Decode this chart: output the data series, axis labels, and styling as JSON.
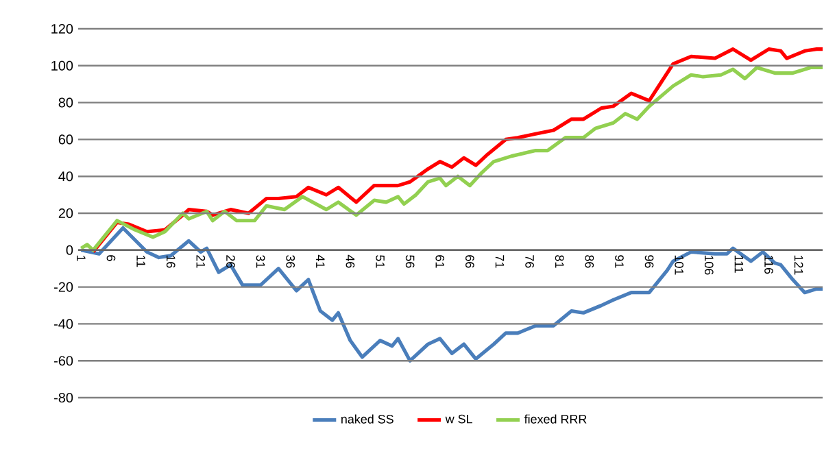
{
  "chart_data": {
    "type": "line",
    "xlim": [
      0.5,
      125
    ],
    "ylim": [
      -80,
      120
    ],
    "xticks": [
      1,
      6,
      11,
      16,
      21,
      26,
      31,
      36,
      41,
      46,
      51,
      56,
      61,
      66,
      71,
      76,
      81,
      86,
      91,
      96,
      101,
      106,
      111,
      116,
      121
    ],
    "yticks": [
      -80,
      -60,
      -40,
      -20,
      0,
      20,
      40,
      60,
      80,
      100,
      120
    ],
    "grid": "y",
    "legend": "bottom",
    "marker": "none",
    "line_style": "solid",
    "series": [
      {
        "name": "naked SS",
        "color": "#4a7ebb",
        "x": [
          1,
          4,
          8,
          12,
          14,
          16,
          19,
          21,
          22,
          24,
          26,
          28,
          31,
          34,
          37,
          39,
          41,
          43,
          44,
          46,
          48,
          51,
          53,
          54,
          56,
          59,
          61,
          63,
          65,
          67,
          70,
          72,
          74,
          77,
          80,
          83,
          85,
          88,
          90,
          93,
          96,
          99,
          100,
          103,
          107,
          109,
          110,
          113,
          115,
          117,
          118,
          120,
          122,
          124,
          125
        ],
        "values": [
          0,
          -2,
          12,
          -1,
          -4,
          -3,
          5,
          -1,
          1,
          -12,
          -8,
          -19,
          -19,
          -10,
          -22,
          -16,
          -33,
          -38,
          -34,
          -49,
          -58,
          -49,
          -52,
          -48,
          -60,
          -51,
          -48,
          -56,
          -51,
          -59,
          -51,
          -45,
          -45,
          -41,
          -41,
          -33,
          -34,
          -30,
          -27,
          -23,
          -23,
          -11,
          -6,
          -1,
          -2,
          -2,
          1,
          -6,
          -1,
          -7,
          -8,
          -16,
          -23,
          -21,
          -21
        ]
      },
      {
        "name": "w SL",
        "color": "#ff0000",
        "x": [
          3,
          7,
          9,
          12,
          15,
          18,
          19,
          22,
          23,
          26,
          29,
          32,
          34,
          37,
          39,
          42,
          44,
          47,
          50,
          54,
          56,
          59,
          61,
          63,
          65,
          67,
          69,
          72,
          74,
          77,
          80,
          83,
          85,
          88,
          90,
          93,
          96,
          98,
          100,
          103,
          107,
          110,
          113,
          116,
          118,
          119,
          122,
          124,
          125
        ],
        "values": [
          -1,
          15,
          14,
          10,
          11,
          19,
          22,
          21,
          19,
          22,
          20,
          28,
          28,
          29,
          34,
          30,
          34,
          26,
          35,
          35,
          37,
          44,
          48,
          45,
          50,
          46,
          52,
          60,
          61,
          63,
          65,
          71,
          71,
          77,
          78,
          85,
          81,
          91,
          101,
          105,
          104,
          109,
          103,
          109,
          108,
          104,
          108,
          109,
          109
        ]
      },
      {
        "name": "fiexed RRR",
        "color": "#92d050",
        "x": [
          1,
          2,
          3,
          7,
          10,
          13,
          15,
          18,
          19,
          22,
          23,
          25,
          27,
          30,
          32,
          35,
          38,
          42,
          44,
          47,
          50,
          52,
          54,
          55,
          57,
          59,
          61,
          62,
          64,
          66,
          68,
          70,
          73,
          77,
          79,
          82,
          85,
          87,
          90,
          92,
          94,
          96,
          100,
          103,
          105,
          108,
          110,
          112,
          114,
          117,
          120,
          123,
          125
        ],
        "values": [
          1,
          3,
          0,
          16,
          11,
          7,
          10,
          20,
          17,
          21,
          16,
          21,
          16,
          16,
          24,
          22,
          29,
          22,
          26,
          19,
          27,
          26,
          29,
          25,
          30,
          37,
          39,
          35,
          40,
          35,
          42,
          48,
          51,
          54,
          54,
          61,
          61,
          66,
          69,
          74,
          71,
          78,
          89,
          95,
          94,
          95,
          98,
          93,
          99,
          96,
          96,
          99,
          99
        ]
      }
    ]
  }
}
